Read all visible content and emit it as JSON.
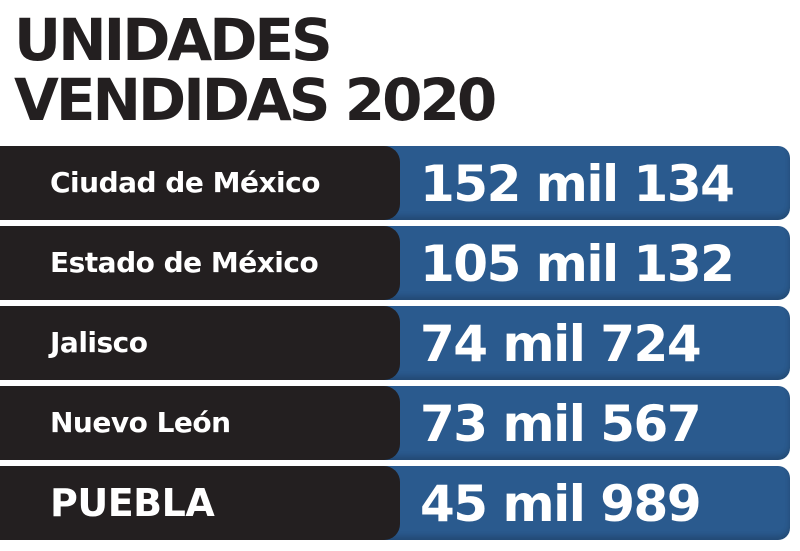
{
  "title_line1": "UNIDADES",
  "title_line2": "VENDIDAS 2020",
  "colors": {
    "label_bg": "#231f20",
    "value_bg": "#2a5a8e",
    "text": "#ffffff",
    "title": "#231f20"
  },
  "chart_data": {
    "type": "table",
    "title": "UNIDADES VENDIDAS 2020",
    "categories": [
      "Ciudad de México",
      "Estado de México",
      "Jalisco",
      "Nuevo León",
      "PUEBLA"
    ],
    "values": [
      152134,
      105132,
      74724,
      73567,
      45989
    ],
    "value_labels": [
      "152 mil 134",
      "105 mil 132",
      "74 mil 724",
      "73 mil 567",
      "45 mil 989"
    ]
  }
}
